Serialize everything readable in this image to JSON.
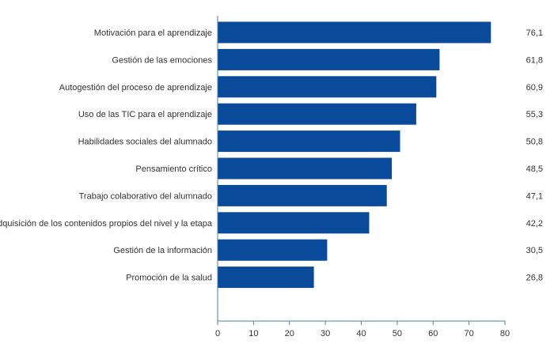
{
  "chart_data": {
    "type": "bar",
    "orientation": "horizontal",
    "categories": [
      "Motivación para el aprendizaje",
      "Gestión de las emociones",
      "Autogestión del proceso de aprendizaje",
      "Uso de las TIC para el aprendizaje",
      "Habilidades sociales del alumnado",
      "Pensamiento crítico",
      "Trabajo colaborativo del alumnado",
      "Adquisición de los contenidos propios del nivel y la etapa",
      "Gestión de la información",
      "Promoción de la salud"
    ],
    "values": [
      76.1,
      61.8,
      60.9,
      55.3,
      50.8,
      48.5,
      47.1,
      42.2,
      30.5,
      26.8
    ],
    "value_labels": [
      "76,1",
      "61,8",
      "60,9",
      "55,3",
      "50,8",
      "48,5",
      "47,1",
      "42,2",
      "30,5",
      "26,8"
    ],
    "xlim": [
      0,
      80
    ],
    "xticks": [
      "0",
      "10",
      "20",
      "30",
      "40",
      "50",
      "60",
      "70",
      "80"
    ],
    "xlabel": "",
    "ylabel": "",
    "title": "",
    "grid": false,
    "bar_color": "#0a4a9a",
    "axis_color": "#4a7fb8"
  }
}
